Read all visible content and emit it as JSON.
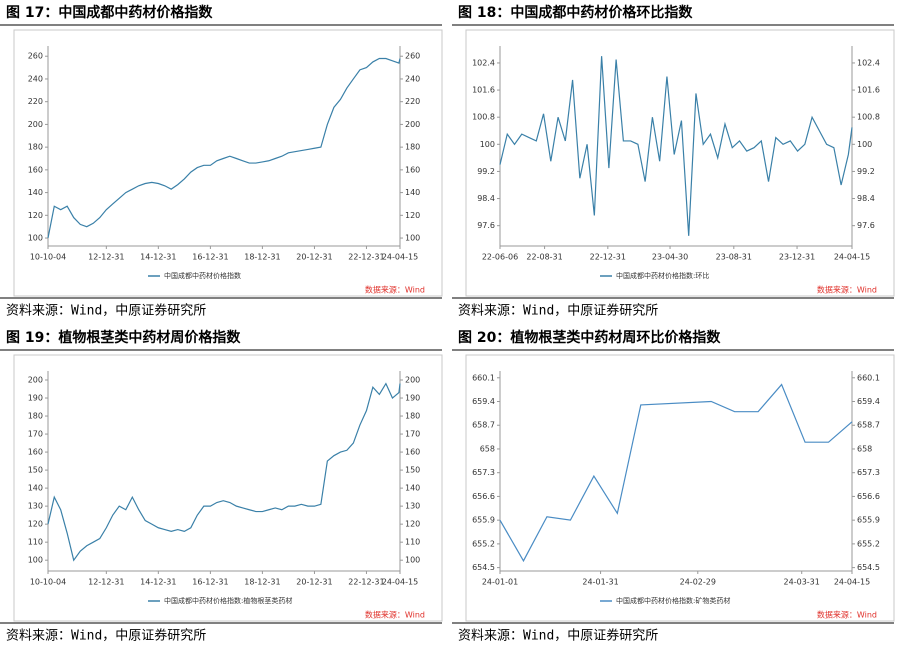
{
  "chart_data": [
    {
      "type": "line",
      "title": "图 17：中国成都中药材价格指数",
      "source": "资料来源：Wind，中原证券研究所",
      "note": "数据来源：Wind",
      "x": [
        "10-10-04",
        "10-12-31",
        "11-03-31",
        "11-06-30",
        "11-09-30",
        "11-12-31",
        "12-03-31",
        "12-06-30",
        "12-09-30",
        "12-12-31",
        "13-03-31",
        "13-06-30",
        "13-09-30",
        "13-12-31",
        "14-03-31",
        "14-06-30",
        "14-09-30",
        "14-12-31",
        "15-03-31",
        "15-06-30",
        "15-09-30",
        "15-12-31",
        "16-03-31",
        "16-06-30",
        "16-09-30",
        "16-12-31",
        "17-03-31",
        "17-06-30",
        "17-09-30",
        "17-12-31",
        "18-03-31",
        "18-06-30",
        "18-09-30",
        "18-12-31",
        "19-03-31",
        "19-06-30",
        "19-09-30",
        "19-12-31",
        "20-03-31",
        "20-06-30",
        "20-09-30",
        "20-12-31",
        "21-03-31",
        "21-06-30",
        "21-09-30",
        "21-12-31",
        "22-03-31",
        "22-06-30",
        "22-09-30",
        "22-12-31",
        "23-03-31",
        "23-06-30",
        "23-09-30",
        "23-12-31",
        "24-03-31",
        "24-04-15"
      ],
      "series": [
        {
          "name": "中国成都中药材价格指数",
          "color": "#3a80a8",
          "values": [
            100,
            128,
            125,
            128,
            118,
            112,
            110,
            113,
            118,
            125,
            130,
            135,
            140,
            143,
            146,
            148,
            149,
            148,
            146,
            143,
            147,
            152,
            158,
            162,
            164,
            164,
            168,
            170,
            172,
            170,
            168,
            166,
            166,
            167,
            168,
            170,
            172,
            175,
            176,
            177,
            178,
            179,
            180,
            200,
            215,
            222,
            232,
            240,
            248,
            250,
            255,
            258,
            258,
            256,
            254,
            258
          ]
        }
      ],
      "xlim": [
        "10-10-04",
        "24-04-15"
      ],
      "xticks": [
        "10-10-04",
        "12-12-31",
        "14-12-31",
        "16-12-31",
        "18-12-31",
        "20-12-31",
        "22-12-31",
        "24-04-15"
      ],
      "ylim": [
        93,
        269
      ],
      "yticks": [
        100,
        120,
        140,
        160,
        180,
        200,
        220,
        240,
        260
      ],
      "y2lim": [
        93,
        269
      ],
      "y2ticks": [
        100,
        120,
        140,
        160,
        180,
        200,
        220,
        240,
        260
      ],
      "grid": false
    },
    {
      "type": "line",
      "title": "图 18：中国成都中药材价格环比指数",
      "source": "资料来源：Wind，中原证券研究所",
      "note": "数据来源：Wind",
      "x": [
        "22-06-06",
        "22-06-20",
        "22-07-04",
        "22-07-18",
        "22-08-01",
        "22-08-15",
        "22-08-29",
        "22-09-12",
        "22-09-26",
        "22-10-10",
        "22-10-24",
        "22-11-07",
        "22-11-21",
        "22-12-05",
        "22-12-19",
        "23-01-02",
        "23-01-16",
        "23-01-30",
        "23-02-13",
        "23-02-27",
        "23-03-13",
        "23-03-27",
        "23-04-10",
        "23-04-24",
        "23-05-08",
        "23-05-22",
        "23-06-05",
        "23-06-19",
        "23-07-03",
        "23-07-17",
        "23-07-31",
        "23-08-14",
        "23-08-28",
        "23-09-11",
        "23-09-25",
        "23-10-09",
        "23-10-23",
        "23-11-06",
        "23-11-20",
        "23-12-04",
        "23-12-18",
        "24-01-01",
        "24-01-15",
        "24-01-29",
        "24-02-12",
        "24-02-26",
        "24-03-11",
        "24-03-25",
        "24-04-08",
        "24-04-15"
      ],
      "series": [
        {
          "name": "中国成都中药材价格指数:环比",
          "color": "#3a80a8",
          "values": [
            99.4,
            100.3,
            100.0,
            100.3,
            100.2,
            100.1,
            100.9,
            99.5,
            100.8,
            100.1,
            101.9,
            99.0,
            100.0,
            97.9,
            102.6,
            99.3,
            102.5,
            100.1,
            100.1,
            100.0,
            98.9,
            100.8,
            99.5,
            102.0,
            99.7,
            100.7,
            97.3,
            101.5,
            100.0,
            100.3,
            99.6,
            100.6,
            99.9,
            100.1,
            99.8,
            99.9,
            100.1,
            98.9,
            100.2,
            100.0,
            100.1,
            99.8,
            100.0,
            100.8,
            100.4,
            100.0,
            99.9,
            98.8,
            99.7,
            100.5
          ]
        }
      ],
      "xlim": [
        "22-06-06",
        "24-04-15"
      ],
      "xticks": [
        "22-06-06",
        "22-08-31",
        "22-12-31",
        "23-04-30",
        "23-08-31",
        "23-12-31",
        "24-04-15"
      ],
      "ylim": [
        97.0,
        102.9
      ],
      "yticks": [
        97.6,
        98.4,
        99.2,
        100,
        100.8,
        101.6,
        102.4
      ],
      "y2lim": [
        97.0,
        102.9
      ],
      "y2ticks": [
        97.6,
        98.4,
        99.2,
        100,
        100.8,
        101.6,
        102.4
      ],
      "grid": false
    },
    {
      "type": "line",
      "title": "图 19：植物根茎类中药材周价格指数",
      "source": "资料来源：Wind，中原证券研究所",
      "note": "数据来源：Wind",
      "x": [
        "10-10-04",
        "10-12-31",
        "11-03-31",
        "11-06-30",
        "11-09-30",
        "11-12-31",
        "12-03-31",
        "12-06-30",
        "12-09-30",
        "12-12-31",
        "13-03-31",
        "13-06-30",
        "13-09-30",
        "13-12-31",
        "14-03-31",
        "14-06-30",
        "14-09-30",
        "14-12-31",
        "15-03-31",
        "15-06-30",
        "15-09-30",
        "15-12-31",
        "16-03-31",
        "16-06-30",
        "16-09-30",
        "16-12-31",
        "17-03-31",
        "17-06-30",
        "17-09-30",
        "17-12-31",
        "18-03-31",
        "18-06-30",
        "18-09-30",
        "18-12-31",
        "19-03-31",
        "19-06-30",
        "19-09-30",
        "19-12-31",
        "20-03-31",
        "20-06-30",
        "20-09-30",
        "20-12-31",
        "21-03-31",
        "21-06-30",
        "21-09-30",
        "21-12-31",
        "22-03-31",
        "22-06-30",
        "22-09-30",
        "22-12-31",
        "23-03-31",
        "23-06-30",
        "23-09-30",
        "23-12-31",
        "24-03-31",
        "24-04-15"
      ],
      "series": [
        {
          "name": "中国成都中药材价格指数:植物根茎类药材",
          "color": "#3a80a8",
          "values": [
            120,
            135,
            128,
            115,
            100,
            105,
            108,
            110,
            112,
            118,
            125,
            130,
            128,
            135,
            128,
            122,
            120,
            118,
            117,
            116,
            117,
            116,
            118,
            125,
            130,
            130,
            132,
            133,
            132,
            130,
            129,
            128,
            127,
            127,
            128,
            129,
            128,
            130,
            130,
            131,
            130,
            130,
            131,
            155,
            158,
            160,
            161,
            165,
            175,
            183,
            196,
            192,
            198,
            190,
            193,
            198
          ]
        }
      ],
      "xlim": [
        "10-10-04",
        "24-04-15"
      ],
      "xticks": [
        "10-10-04",
        "12-12-31",
        "14-12-31",
        "16-12-31",
        "18-12-31",
        "20-12-31",
        "22-12-31",
        "24-04-15"
      ],
      "ylim": [
        94,
        205
      ],
      "yticks": [
        100,
        110,
        120,
        130,
        140,
        150,
        160,
        170,
        180,
        190,
        200
      ],
      "y2lim": [
        94,
        205
      ],
      "y2ticks": [
        100,
        110,
        120,
        130,
        140,
        150,
        160,
        170,
        180,
        190,
        200
      ],
      "grid": false
    },
    {
      "type": "line",
      "title": "图 20：植物根茎类中药材周环比价格指数",
      "source": "资料来源：Wind，中原证券研究所",
      "note": "数据来源：Wind",
      "x": [
        "24-01-01",
        "24-01-08",
        "24-01-15",
        "24-01-22",
        "24-01-29",
        "24-02-05",
        "24-02-12",
        "24-03-04",
        "24-03-11",
        "24-03-18",
        "24-03-25",
        "24-04-01",
        "24-04-08",
        "24-04-15"
      ],
      "series": [
        {
          "name": "中国成都中药材价格指数:矿物类药材",
          "color": "#4a8cc4",
          "values": [
            655.9,
            654.7,
            656.0,
            655.9,
            657.2,
            656.1,
            659.3,
            659.4,
            659.1,
            659.1,
            659.9,
            658.2,
            658.2,
            658.8
          ]
        }
      ],
      "xlim": [
        "24-01-01",
        "24-04-15"
      ],
      "xticks": [
        "24-01-01",
        "24-01-31",
        "24-02-29",
        "24-03-31",
        "24-04-15"
      ],
      "ylim": [
        654.4,
        660.3
      ],
      "yticks": [
        654.5,
        655.2,
        655.9,
        656.6,
        657.3,
        658,
        658.7,
        659.4,
        660.1
      ],
      "y2lim": [
        654.4,
        660.3
      ],
      "y2ticks": [
        654.5,
        655.2,
        655.9,
        656.6,
        657.3,
        658,
        658.7,
        659.4,
        660.1
      ],
      "grid": false
    }
  ]
}
